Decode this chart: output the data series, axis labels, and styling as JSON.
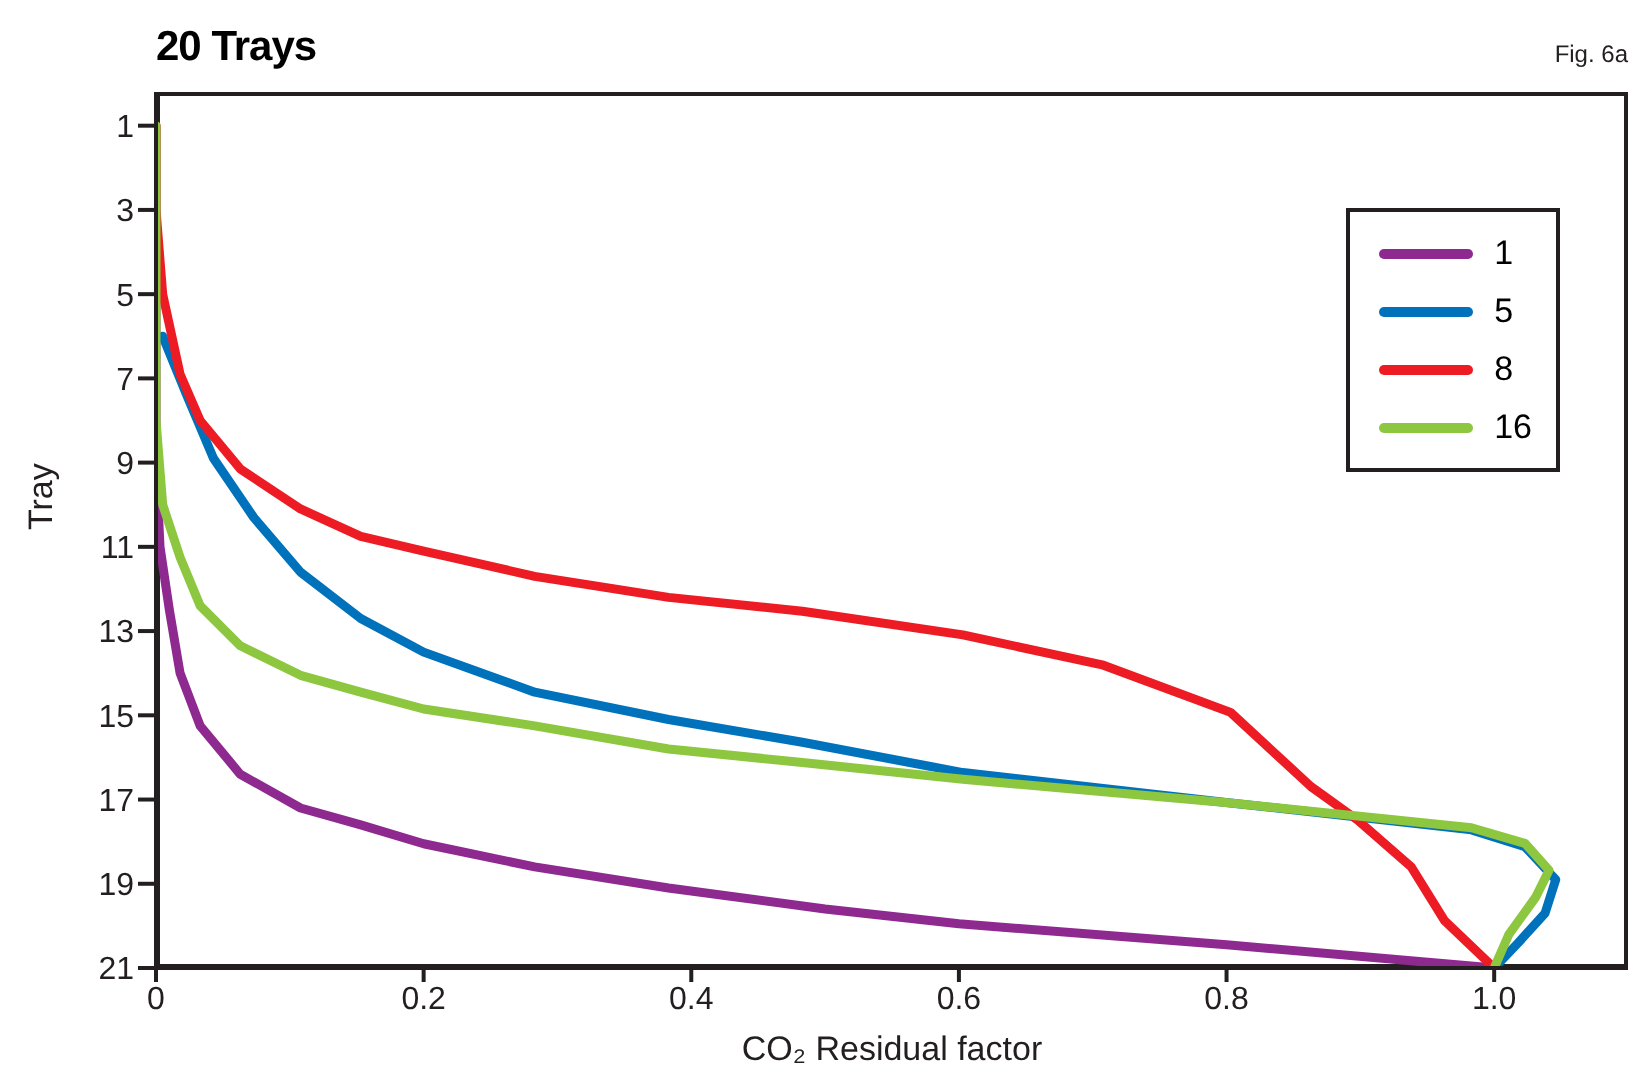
{
  "chart_data": {
    "type": "line",
    "title": "20 Trays",
    "xlabel": "CO₂ Residual factor",
    "ylabel": "Tray",
    "annotations": [
      "Fig. 6a"
    ],
    "xlim": [
      0,
      1.1
    ],
    "xticks": [
      0,
      0.2,
      0.4,
      0.6,
      0.8,
      {
        "value": 1,
        "label": "1.0"
      }
    ],
    "ylim": [
      21,
      0.2
    ],
    "yticks": [
      1,
      3,
      5,
      7,
      9,
      11,
      13,
      15,
      17,
      19,
      21
    ],
    "legend": "top right",
    "marker": "none",
    "line_style": "solid",
    "series": [
      {
        "name": "1",
        "color": "#8e2a8f",
        "x": [
          0,
          0,
          0.003,
          0.01,
          0.018,
          0.033,
          0.063,
          0.108,
          0.153,
          0.2,
          0.283,
          0.383,
          0.5,
          0.6,
          0.8,
          1.0
        ],
        "values": [
          1,
          9,
          11,
          12.5,
          14,
          15.25,
          16.4,
          17.2,
          17.6,
          18.05,
          18.6,
          19.1,
          19.6,
          19.95,
          20.45,
          21
        ]
      },
      {
        "name": "5",
        "color": "#0072bc",
        "x": [
          0.005,
          0.023,
          0.043,
          0.073,
          0.108,
          0.153,
          0.2,
          0.283,
          0.383,
          0.483,
          0.603,
          0.803,
          0.983,
          1.023,
          1.046,
          1.038,
          1.018,
          1.0
        ],
        "values": [
          6,
          7.4,
          8.9,
          10.3,
          11.6,
          12.7,
          13.5,
          14.45,
          15.1,
          15.64,
          16.36,
          17.08,
          17.72,
          18.12,
          18.9,
          19.7,
          20.4,
          21
        ]
      },
      {
        "name": "8",
        "color": "#ed1c24",
        "x": [
          0,
          0,
          0.005,
          0.018,
          0.033,
          0.063,
          0.108,
          0.153,
          0.2,
          0.283,
          0.383,
          0.483,
          0.603,
          0.708,
          0.803,
          0.863,
          0.898,
          0.938,
          0.963,
          1.0
        ],
        "values": [
          1,
          3,
          5,
          6.9,
          8.0,
          9.15,
          10.1,
          10.75,
          11.1,
          11.7,
          12.2,
          12.53,
          13.09,
          13.81,
          14.93,
          16.69,
          17.49,
          18.6,
          19.88,
          21
        ]
      },
      {
        "name": "16",
        "color": "#8dc63f",
        "x": [
          0,
          0,
          0.005,
          0.018,
          0.033,
          0.063,
          0.108,
          0.153,
          0.2,
          0.283,
          0.383,
          0.483,
          0.603,
          0.803,
          0.983,
          1.023,
          1.041,
          1.031,
          1.011,
          1.0
        ],
        "values": [
          1,
          8,
          10,
          11.25,
          12.4,
          13.35,
          14.05,
          14.45,
          14.85,
          15.25,
          15.8,
          16.12,
          16.52,
          17.08,
          17.67,
          18.04,
          18.68,
          19.32,
          20.2,
          21
        ]
      }
    ]
  }
}
